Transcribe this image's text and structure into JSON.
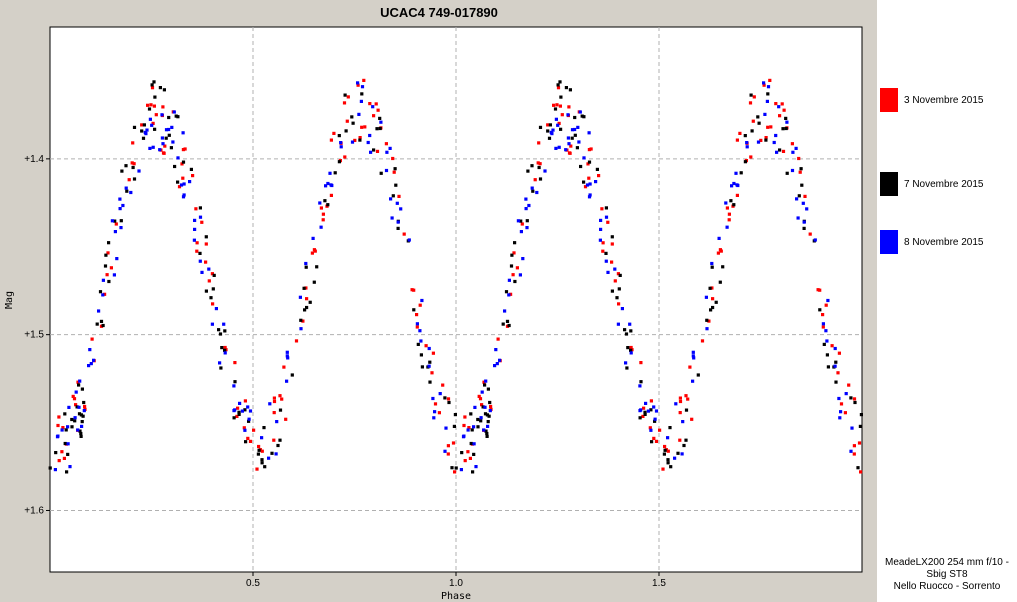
{
  "chart_data": {
    "type": "scatter",
    "title": "UCAC4 749-017890",
    "xlabel": "Phase",
    "ylabel": "Mag",
    "xlim": [
      0,
      2
    ],
    "ylim": [
      1.635,
      1.325
    ],
    "y_inverted": true,
    "x_ticks": [
      {
        "v": 0.5,
        "label": "0.5"
      },
      {
        "v": 1.0,
        "label": "1.0"
      },
      {
        "v": 1.5,
        "label": "1.5"
      }
    ],
    "y_ticks": [
      {
        "v": 1.4,
        "label": "+1.4"
      },
      {
        "v": 1.5,
        "label": "+1.5"
      },
      {
        "v": 1.6,
        "label": "+1.6"
      }
    ],
    "grid": true,
    "legend_position": "right",
    "light_curve": {
      "period_phase": 1.0,
      "maxima": [
        {
          "phase": 0.26,
          "mag": 1.375
        },
        {
          "phase": 0.76,
          "mag": 1.372
        }
      ],
      "minima": [
        {
          "phase": 0.02,
          "mag": 1.565
        },
        {
          "phase": 0.52,
          "mag": 1.56
        }
      ],
      "scatter_mag": 0.012,
      "points_per_series": 130
    },
    "series": [
      {
        "name": "3 Novembre 2015",
        "color": "#ff0000",
        "seed": 11
      },
      {
        "name": "7 Novembre 2015",
        "color": "#000000",
        "seed": 23
      },
      {
        "name": "8 Novembre 2015",
        "color": "#0000ff",
        "seed": 37
      }
    ]
  },
  "credit": {
    "line1": "MeadeLX200 254 mm f/10 -",
    "line2": "Sbig ST8",
    "line3": "Nello Ruocco - Sorrento"
  }
}
